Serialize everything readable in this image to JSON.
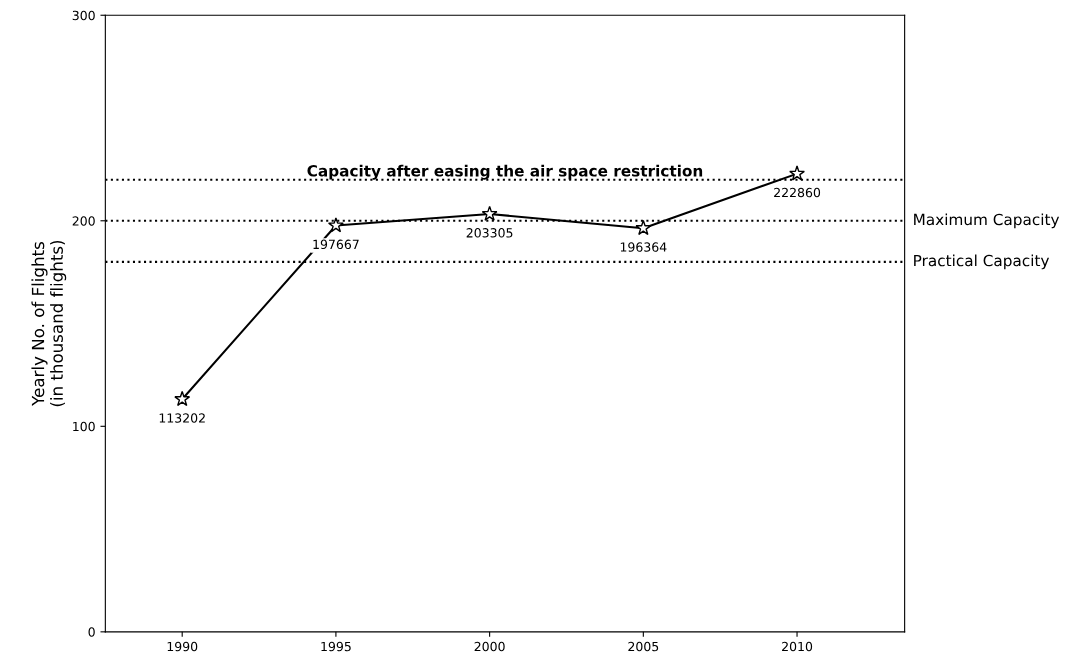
{
  "chart_data": {
    "type": "line",
    "ylabel": "Yearly No. of Flights\n(in thousand flights)",
    "x": [
      1990,
      1995,
      2000,
      2005,
      2010
    ],
    "series": [
      {
        "color": "#000000",
        "values": [
          113.2,
          197.7,
          203.3,
          196.4,
          222.9
        ]
      }
    ],
    "value_labels": [
      "113202",
      "197667",
      "203305",
      "196364",
      "222860"
    ],
    "xlim": [
      1987.5,
      2013.5
    ],
    "xticks": [
      1990,
      1995,
      2000,
      2005,
      2010
    ],
    "ylim": [
      0,
      300
    ],
    "yticks": [
      0,
      100,
      200,
      300
    ],
    "ref_lines": [
      {
        "axis": "y",
        "value": 220,
        "label": "Capacity after easing the air space restriction",
        "color": "#000000",
        "line_style": "dotted"
      },
      {
        "axis": "y",
        "value": 200,
        "label": "Maximum Capacity",
        "color": "#000000",
        "line_style": "dotted"
      },
      {
        "axis": "y",
        "value": 180,
        "label": "Practical Capacity",
        "color": "#000000",
        "line_style": "dotted"
      }
    ],
    "marker": "star",
    "line_style": "solid",
    "grid": false,
    "legend": false
  }
}
